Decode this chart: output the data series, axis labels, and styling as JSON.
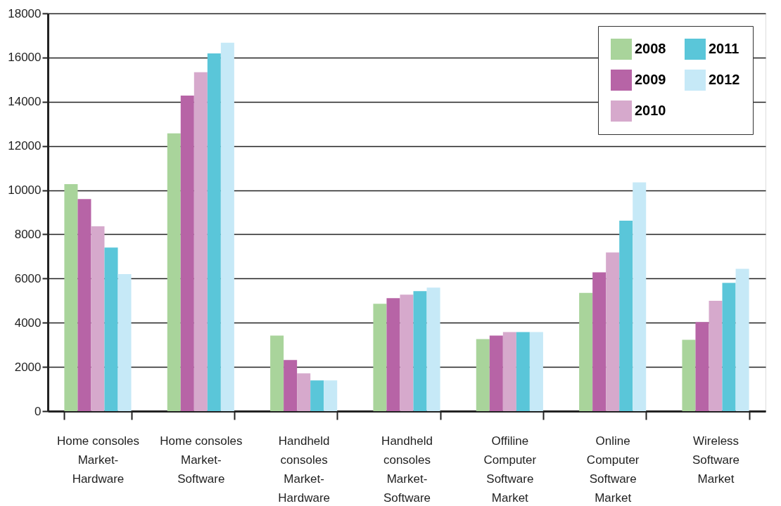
{
  "chart_data": {
    "type": "bar",
    "categories": [
      "Home consoles\nMarket-\nHardware",
      "Home consoles\nMarket-\nSoftware",
      "Handheld\nconsoles\nMarket-\nHardware",
      "Handheld\nconsoles\nMarket-\nSoftware",
      "Offiline\nComputer\nSoftware\nMarket",
      "Online\nComputer\nSoftware\nMarket",
      "Wireless\nSoftware\nMarket"
    ],
    "series": [
      {
        "name": "2008",
        "color": "#a9d49b",
        "values": [
          10270,
          12570,
          3420,
          4860,
          3260,
          5350,
          3230
        ]
      },
      {
        "name": "2009",
        "color": "#b764a6",
        "values": [
          9600,
          14280,
          2310,
          5110,
          3420,
          6280,
          4030
        ]
      },
      {
        "name": "2010",
        "color": "#d6a9cc",
        "values": [
          8360,
          15340,
          1710,
          5270,
          3580,
          7180,
          4990
        ]
      },
      {
        "name": "2011",
        "color": "#5ac6d9",
        "values": [
          7400,
          16190,
          1390,
          5430,
          3580,
          8620,
          5800
        ]
      },
      {
        "name": "2012",
        "color": "#c6e9f7",
        "values": [
          6200,
          16670,
          1390,
          5590,
          3580,
          10350,
          6440
        ]
      }
    ],
    "ylim": [
      0,
      18000
    ],
    "yticks": [
      0,
      2000,
      4000,
      6000,
      8000,
      10000,
      12000,
      14000,
      16000,
      18000
    ],
    "grid": "y",
    "legend": "top right"
  }
}
